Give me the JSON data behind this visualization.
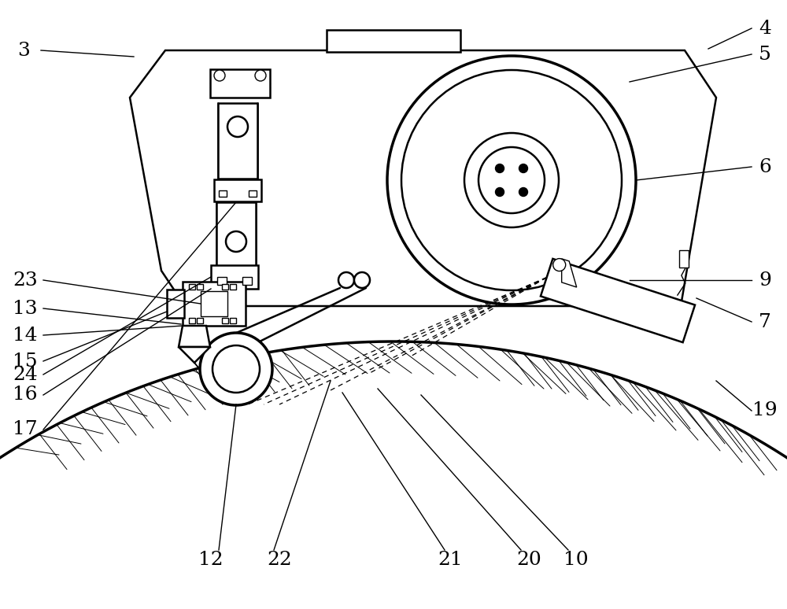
{
  "bg_color": "#ffffff",
  "line_color": "#000000",
  "label_color": "#000000",
  "label_fontsize": 18,
  "lw_main": 1.8,
  "lw_thick": 2.5,
  "lw_thin": 1.0
}
